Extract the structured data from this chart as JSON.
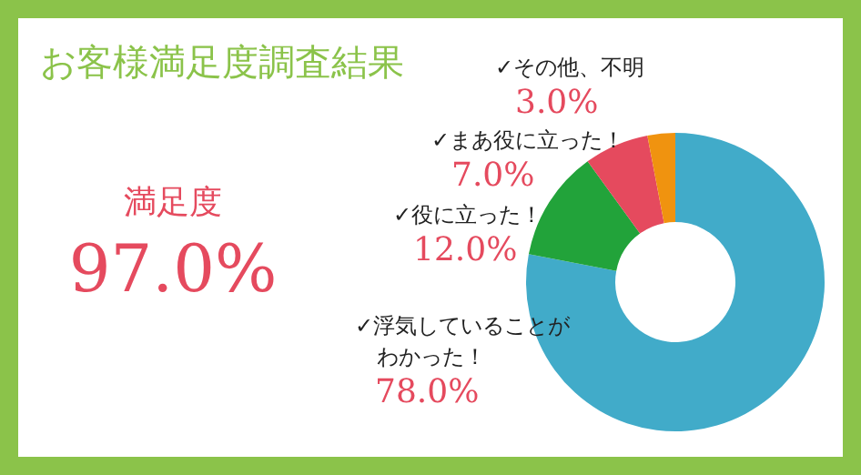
{
  "chart_data": {
    "type": "donut",
    "title": "お客様満足度調査結果",
    "categories": [
      "✓浮気していることがわかった！",
      "✓役に立った！",
      "✓まあ役に立った！",
      "✓その他、不明"
    ],
    "values": [
      78,
      12,
      7,
      3
    ],
    "colors": [
      "#41abc9",
      "#22a33a",
      "#e54a5e",
      "#f0930f"
    ],
    "value_labels": [
      "78.0%",
      "12.0%",
      "7.0%",
      "3.0%"
    ],
    "annotations": [
      "満足度",
      "97.0%"
    ]
  }
}
